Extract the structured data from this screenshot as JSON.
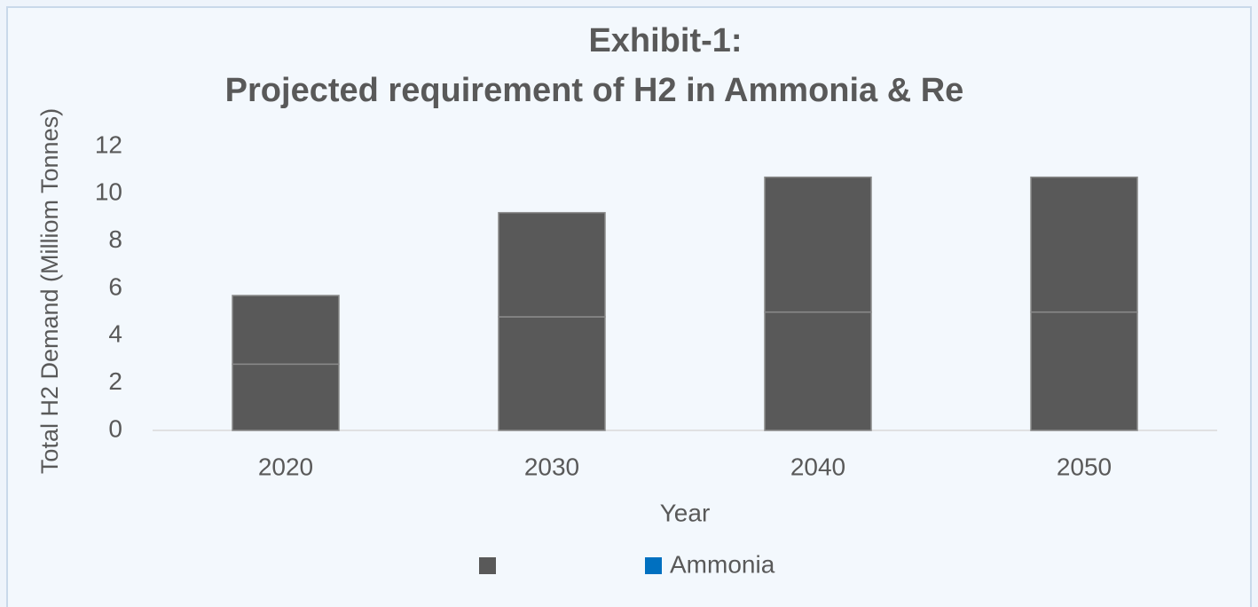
{
  "chart_data": {
    "type": "stacked_bar",
    "title_lines": [
      "Exhibit-1:",
      "Projected requirement of H2 in Ammonia & Re"
    ],
    "y_label": "Total H2 Demand (Milliom Tonnes)",
    "x_label": "Year",
    "categories": [
      "2020",
      "2030",
      "2040",
      "2050"
    ],
    "series": [
      {
        "color": "#595959",
        "values": [
          2.8,
          4.8,
          5.0,
          5.0
        ]
      },
      {
        "name": "Ammonia",
        "color": "#0070c0",
        "values": [
          2.9,
          4.4,
          5.7,
          5.7
        ]
      }
    ],
    "bar_color": "#595959",
    "ylim": [
      0,
      12
    ],
    "yticks": [
      0,
      2,
      4,
      6,
      8,
      10,
      12
    ],
    "grid": false,
    "legend": "bottom"
  }
}
